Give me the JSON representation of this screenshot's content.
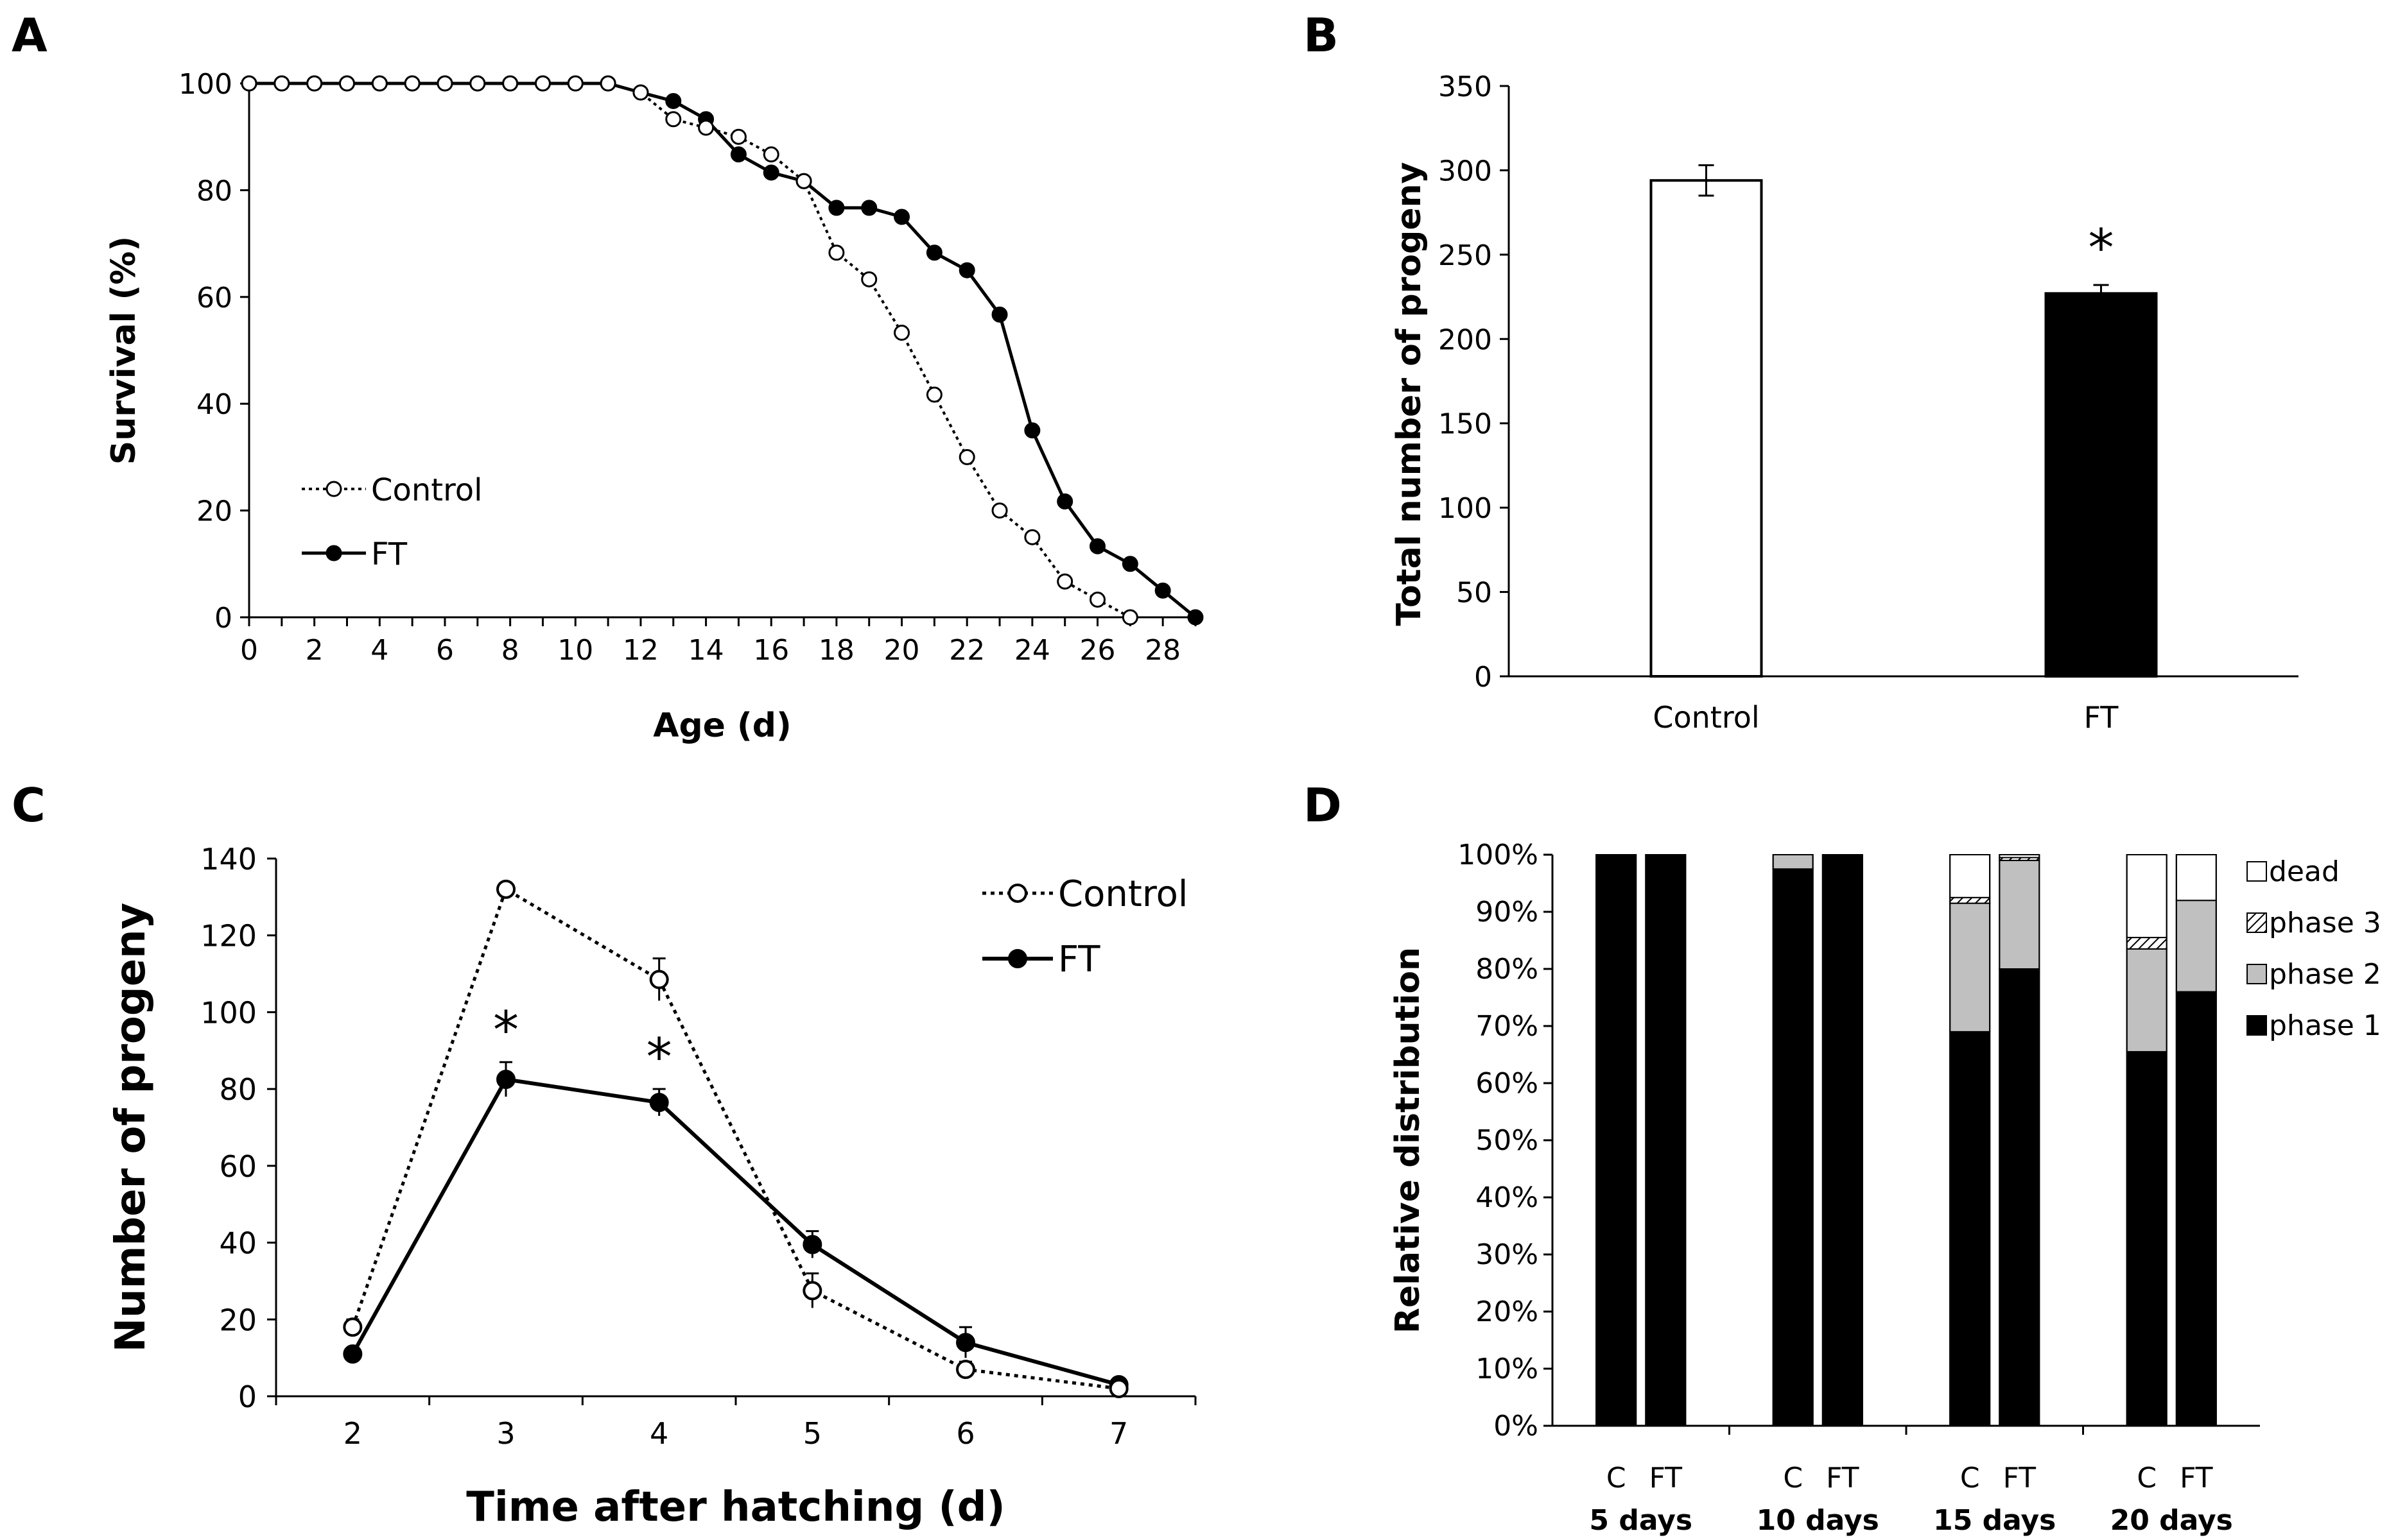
{
  "panels": {
    "A": {
      "letter": "A"
    },
    "B": {
      "letter": "B"
    },
    "C": {
      "letter": "C"
    },
    "D": {
      "letter": "D"
    }
  },
  "chart_data": [
    {
      "id": "A",
      "type": "line",
      "xlabel": "Age (d)",
      "ylabel": "Survival (%)",
      "xlim": [
        0,
        29
      ],
      "ylim": [
        0,
        100
      ],
      "xticks": [
        "0",
        "2",
        "4",
        "6",
        "8",
        "10",
        "12",
        "14",
        "16",
        "18",
        "20",
        "22",
        "24",
        "26",
        "28"
      ],
      "yticks": [
        "0",
        "20",
        "40",
        "60",
        "80",
        "100"
      ],
      "legend_position": "bottom-left",
      "series": [
        {
          "name": "Control",
          "style": "dotted-open",
          "x": [
            0,
            1,
            2,
            3,
            4,
            5,
            6,
            7,
            8,
            9,
            10,
            11,
            12,
            13,
            14,
            15,
            16,
            17,
            18,
            19,
            20,
            21,
            22,
            23,
            24,
            25,
            26,
            27
          ],
          "y": [
            100,
            100,
            100,
            100,
            100,
            100,
            100,
            100,
            100,
            100,
            100,
            100,
            98.3,
            93.3,
            91.7,
            90,
            86.7,
            81.7,
            68.3,
            63.3,
            53.3,
            41.7,
            30,
            20,
            15,
            6.7,
            3.3,
            0
          ]
        },
        {
          "name": "FT",
          "style": "solid-filled",
          "x": [
            0,
            1,
            2,
            3,
            4,
            5,
            6,
            7,
            8,
            9,
            10,
            11,
            12,
            13,
            14,
            15,
            16,
            17,
            18,
            19,
            20,
            21,
            22,
            23,
            24,
            25,
            26,
            27,
            28,
            29
          ],
          "y": [
            100,
            100,
            100,
            100,
            100,
            100,
            100,
            100,
            100,
            100,
            100,
            100,
            98.3,
            96.7,
            93.3,
            86.7,
            83.3,
            81.7,
            76.7,
            76.7,
            75,
            68.3,
            65,
            56.7,
            35,
            21.7,
            13.3,
            10,
            5,
            0
          ]
        }
      ]
    },
    {
      "id": "B",
      "type": "bar",
      "ylabel": "Total number of progeny",
      "ylim": [
        0,
        350
      ],
      "yticks": [
        "0",
        "50",
        "100",
        "150",
        "200",
        "250",
        "300",
        "350"
      ],
      "categories": [
        "Control",
        "FT"
      ],
      "values": [
        294,
        227
      ],
      "errors": [
        9,
        5
      ],
      "colors": [
        "#ffffff",
        "#000000"
      ],
      "significance": [
        "",
        "*"
      ]
    },
    {
      "id": "C",
      "type": "line",
      "xlabel": "Time after hatching (d)",
      "ylabel": "Number of progeny",
      "ylim": [
        0,
        140
      ],
      "yticks": [
        "0",
        "20",
        "40",
        "60",
        "80",
        "100",
        "120",
        "140"
      ],
      "categories": [
        "2",
        "3",
        "4",
        "5",
        "6",
        "7"
      ],
      "legend_position": "top-right",
      "series": [
        {
          "name": "Control",
          "style": "dotted-open",
          "values": [
            18,
            132,
            108.5,
            27.5,
            7,
            2
          ],
          "errors": [
            2,
            1.5,
            5.5,
            4.5,
            2,
            1
          ]
        },
        {
          "name": "FT",
          "style": "solid-filled",
          "values": [
            11,
            82.5,
            76.5,
            39.5,
            14,
            3
          ],
          "errors": [
            1,
            4.5,
            3.5,
            3.5,
            4,
            1
          ]
        }
      ],
      "significance": [
        "",
        "*",
        "*",
        "",
        "",
        ""
      ]
    },
    {
      "id": "D",
      "type": "bar",
      "stacked": true,
      "ylabel": "Relative distribution",
      "ylim": [
        0,
        100
      ],
      "yticks": [
        "0%",
        "10%",
        "20%",
        "30%",
        "40%",
        "50%",
        "60%",
        "70%",
        "80%",
        "90%",
        "100%"
      ],
      "groups": [
        "5 days",
        "10 days",
        "15 days",
        "20 days"
      ],
      "bar_labels": [
        "C",
        "FT"
      ],
      "legend_position": "right",
      "stack_order": [
        "phase 1",
        "phase 2",
        "phase 3",
        "dead"
      ],
      "legend": [
        "dead",
        "phase 3",
        "phase 2",
        "phase 1"
      ],
      "stack_colors": {
        "phase 1": "#000000",
        "phase 2": "#c0c0c0",
        "phase 3": "hatch",
        "dead": "#ffffff"
      },
      "bars": [
        {
          "group": "5 days",
          "label": "C",
          "values": {
            "phase 1": 100,
            "phase 2": 0,
            "phase 3": 0,
            "dead": 0
          }
        },
        {
          "group": "5 days",
          "label": "FT",
          "values": {
            "phase 1": 100,
            "phase 2": 0,
            "phase 3": 0,
            "dead": 0
          }
        },
        {
          "group": "10 days",
          "label": "C",
          "values": {
            "phase 1": 97.5,
            "phase 2": 2.5,
            "phase 3": 0,
            "dead": 0
          }
        },
        {
          "group": "10 days",
          "label": "FT",
          "values": {
            "phase 1": 100,
            "phase 2": 0,
            "phase 3": 0,
            "dead": 0
          }
        },
        {
          "group": "15 days",
          "label": "C",
          "values": {
            "phase 1": 69,
            "phase 2": 22.5,
            "phase 3": 1,
            "dead": 7.5
          }
        },
        {
          "group": "15 days",
          "label": "FT",
          "values": {
            "phase 1": 80,
            "phase 2": 19,
            "phase 3": 0.5,
            "dead": 0.5
          }
        },
        {
          "group": "20 days",
          "label": "C",
          "values": {
            "phase 1": 65.5,
            "phase 2": 18,
            "phase 3": 2,
            "dead": 14.5
          }
        },
        {
          "group": "20 days",
          "label": "FT",
          "values": {
            "phase 1": 76,
            "phase 2": 16,
            "phase 3": 0,
            "dead": 8
          }
        }
      ]
    }
  ]
}
